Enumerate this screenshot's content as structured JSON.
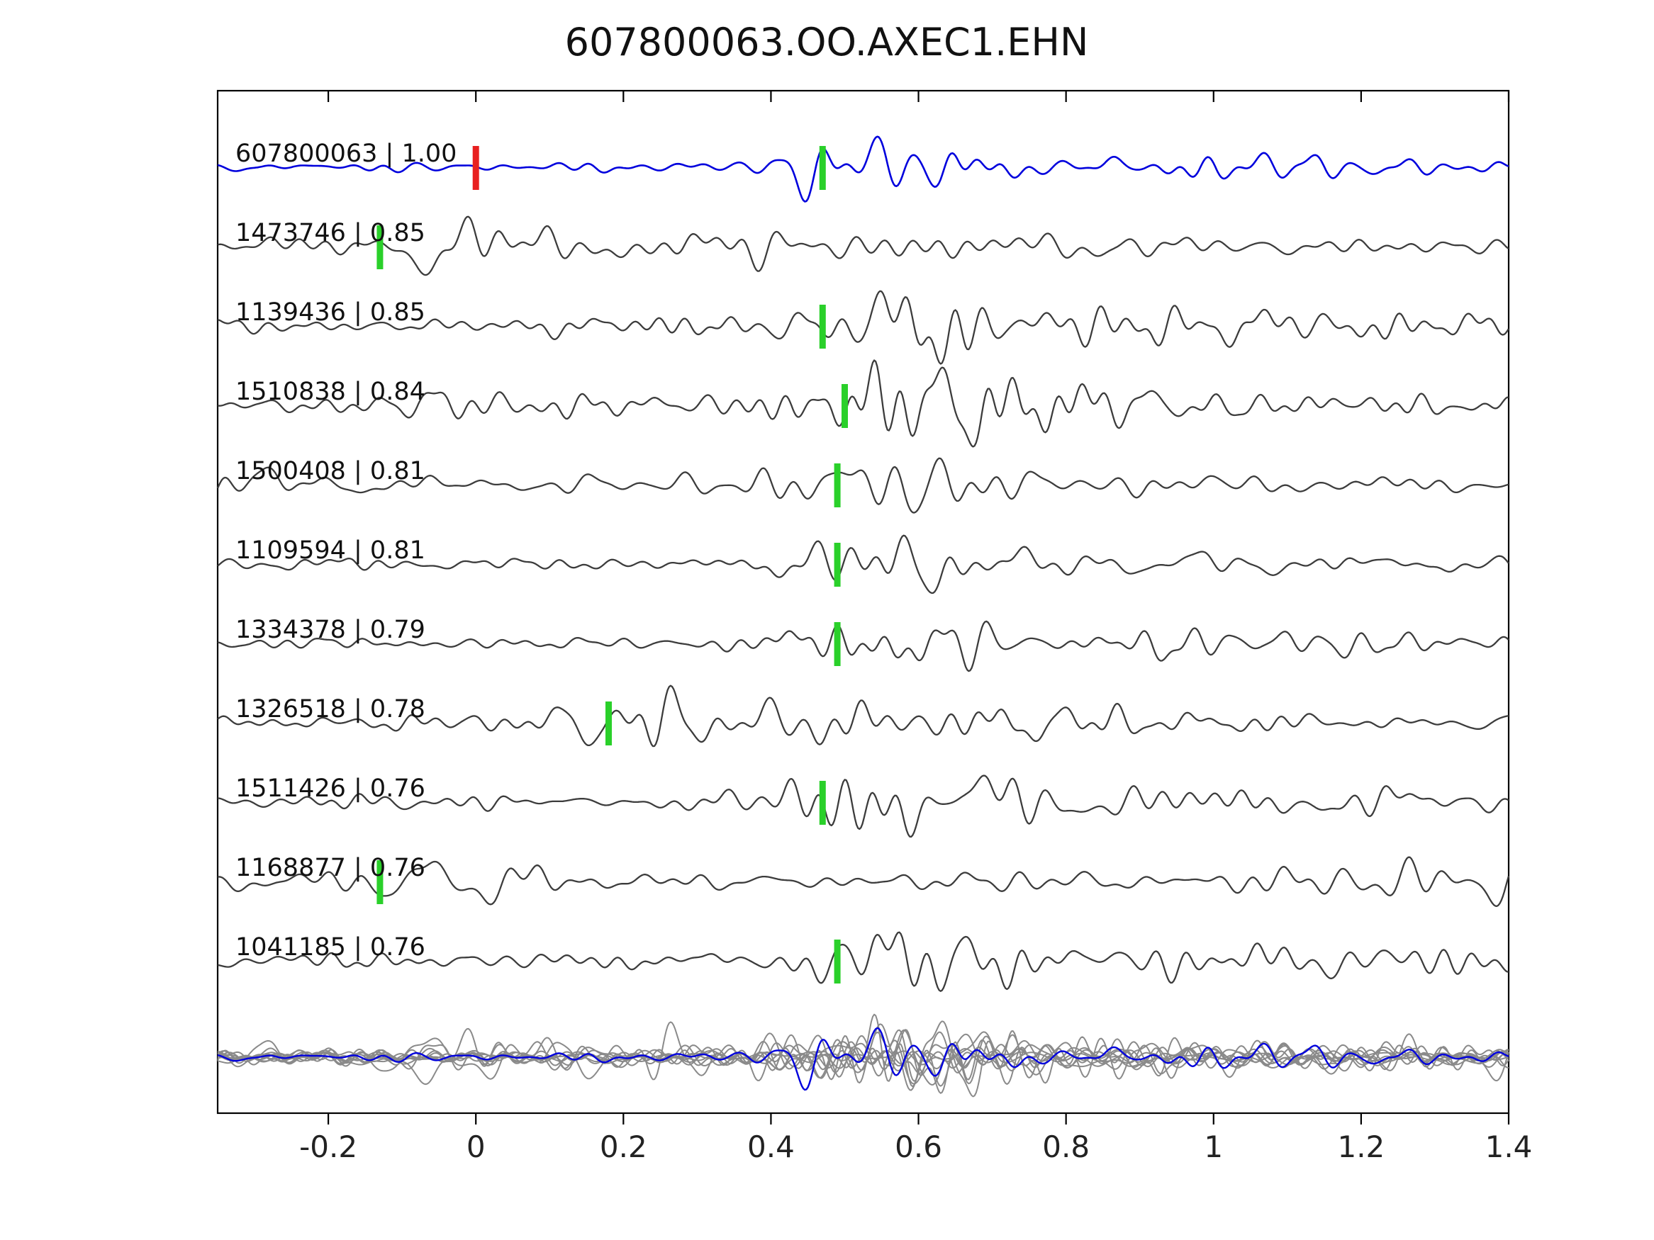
{
  "title": "607800063.OO.AXEC1.EHN",
  "colors": {
    "template_trace": "#0000dd",
    "match_trace": "#3c3c3c",
    "overlay_gray": "#8a8a8a",
    "pick_green": "#2ad02a",
    "pick_red": "#e82020",
    "axis": "#000000",
    "label_text": "#111111"
  },
  "chart_data": {
    "type": "line",
    "title": "607800063.OO.AXEC1.EHN",
    "xlabel": "",
    "ylabel": "",
    "xlim": [
      -0.35,
      1.4
    ],
    "x_tick_values": [
      -0.2,
      0,
      0.2,
      0.4,
      0.6,
      0.8,
      1,
      1.2,
      1.4
    ],
    "x_tick_labels": [
      "-0.2",
      "0",
      "0.2",
      "0.4",
      "0.6",
      "0.8",
      "1",
      "1.2",
      "1.4"
    ],
    "grid": false,
    "legend": false,
    "traces": [
      {
        "label": "607800063 | 1.00",
        "event_id": "607800063",
        "correlation": "1.00",
        "role": "template",
        "picks": [
          {
            "x": 0.0,
            "type": "red"
          },
          {
            "x": 0.47,
            "type": "green"
          }
        ],
        "envelope": {
          "seed": 11,
          "noise_amp": 4,
          "bursts": [
            {
              "t": 0.56,
              "amp": 30,
              "w": 0.09
            },
            {
              "t": 0.95,
              "amp": 10,
              "w": 0.35
            }
          ]
        }
      },
      {
        "label": "1473746 | 0.85",
        "event_id": "1473746",
        "correlation": "0.85",
        "role": "match",
        "picks": [
          {
            "x": -0.13,
            "type": "green"
          }
        ],
        "envelope": {
          "seed": 22,
          "noise_amp": 9,
          "bursts": [
            {
              "t": -0.02,
              "amp": 26,
              "w": 0.12
            },
            {
              "t": 0.5,
              "amp": 8,
              "w": 0.3
            }
          ]
        }
      },
      {
        "label": "1139436 | 0.85",
        "event_id": "1139436",
        "correlation": "0.85",
        "role": "match",
        "picks": [
          {
            "x": 0.47,
            "type": "green"
          }
        ],
        "envelope": {
          "seed": 33,
          "noise_amp": 7,
          "bursts": [
            {
              "t": 0.58,
              "amp": 28,
              "w": 0.12
            },
            {
              "t": 1.0,
              "amp": 8,
              "w": 0.3
            }
          ]
        }
      },
      {
        "label": "1510838 | 0.84",
        "event_id": "1510838",
        "correlation": "0.84",
        "role": "match",
        "picks": [
          {
            "x": 0.5,
            "type": "green"
          }
        ],
        "envelope": {
          "seed": 44,
          "noise_amp": 8,
          "bursts": [
            {
              "t": 0.0,
              "amp": 10,
              "w": 0.12
            },
            {
              "t": 0.6,
              "amp": 30,
              "w": 0.13
            },
            {
              "t": 1.1,
              "amp": 8,
              "w": 0.3
            }
          ]
        }
      },
      {
        "label": "1500408 | 0.81",
        "event_id": "1500408",
        "correlation": "0.81",
        "role": "match",
        "picks": [
          {
            "x": 0.49,
            "type": "green"
          }
        ],
        "envelope": {
          "seed": 55,
          "noise_amp": 9,
          "bursts": [
            {
              "t": -0.3,
              "amp": 12,
              "w": 0.08
            },
            {
              "t": 0.55,
              "amp": 28,
              "w": 0.12
            }
          ]
        }
      },
      {
        "label": "1109594 | 0.81",
        "event_id": "1109594",
        "correlation": "0.81",
        "role": "match",
        "picks": [
          {
            "x": 0.49,
            "type": "green"
          }
        ],
        "envelope": {
          "seed": 66,
          "noise_amp": 7,
          "bursts": [
            {
              "t": 0.58,
              "amp": 30,
              "w": 0.1
            },
            {
              "t": 1.0,
              "amp": 7,
              "w": 0.3
            }
          ]
        }
      },
      {
        "label": "1334378 | 0.79",
        "event_id": "1334378",
        "correlation": "0.79",
        "role": "match",
        "picks": [
          {
            "x": 0.49,
            "type": "green"
          }
        ],
        "envelope": {
          "seed": 77,
          "noise_amp": 7,
          "bursts": [
            {
              "t": 0.55,
              "amp": 26,
              "w": 0.1
            },
            {
              "t": 0.95,
              "amp": 9,
              "w": 0.3
            }
          ]
        }
      },
      {
        "label": "1326518 | 0.78",
        "event_id": "1326518",
        "correlation": "0.78",
        "role": "match",
        "picks": [
          {
            "x": 0.18,
            "type": "green"
          }
        ],
        "envelope": {
          "seed": 88,
          "noise_amp": 7,
          "bursts": [
            {
              "t": 0.33,
              "amp": 26,
              "w": 0.14
            },
            {
              "t": 0.75,
              "amp": 10,
              "w": 0.25
            }
          ]
        }
      },
      {
        "label": "1511426 | 0.76",
        "event_id": "1511426",
        "correlation": "0.76",
        "role": "match",
        "picks": [
          {
            "x": 0.47,
            "type": "green"
          }
        ],
        "envelope": {
          "seed": 99,
          "noise_amp": 7,
          "bursts": [
            {
              "t": 0.58,
              "amp": 30,
              "w": 0.11
            },
            {
              "t": 0.95,
              "amp": 8,
              "w": 0.25
            }
          ]
        }
      },
      {
        "label": "1168877 | 0.76",
        "event_id": "1168877",
        "correlation": "0.76",
        "role": "match",
        "picks": [
          {
            "x": -0.13,
            "type": "green"
          }
        ],
        "envelope": {
          "seed": 110,
          "noise_amp": 10,
          "bursts": [
            {
              "t": -0.02,
              "amp": 16,
              "w": 0.1
            },
            {
              "t": 1.32,
              "amp": 22,
              "w": 0.12
            }
          ]
        }
      },
      {
        "label": "1041185 | 0.76",
        "event_id": "1041185",
        "correlation": "0.76",
        "role": "match",
        "picks": [
          {
            "x": 0.49,
            "type": "green"
          }
        ],
        "envelope": {
          "seed": 121,
          "noise_amp": 8,
          "bursts": [
            {
              "t": 0.6,
              "amp": 30,
              "w": 0.11
            },
            {
              "t": 1.0,
              "amp": 8,
              "w": 0.3
            }
          ]
        }
      }
    ],
    "overlay_row": {
      "description": "all matched traces superimposed in gray with the blue template trace on top",
      "includes_template": true
    }
  }
}
